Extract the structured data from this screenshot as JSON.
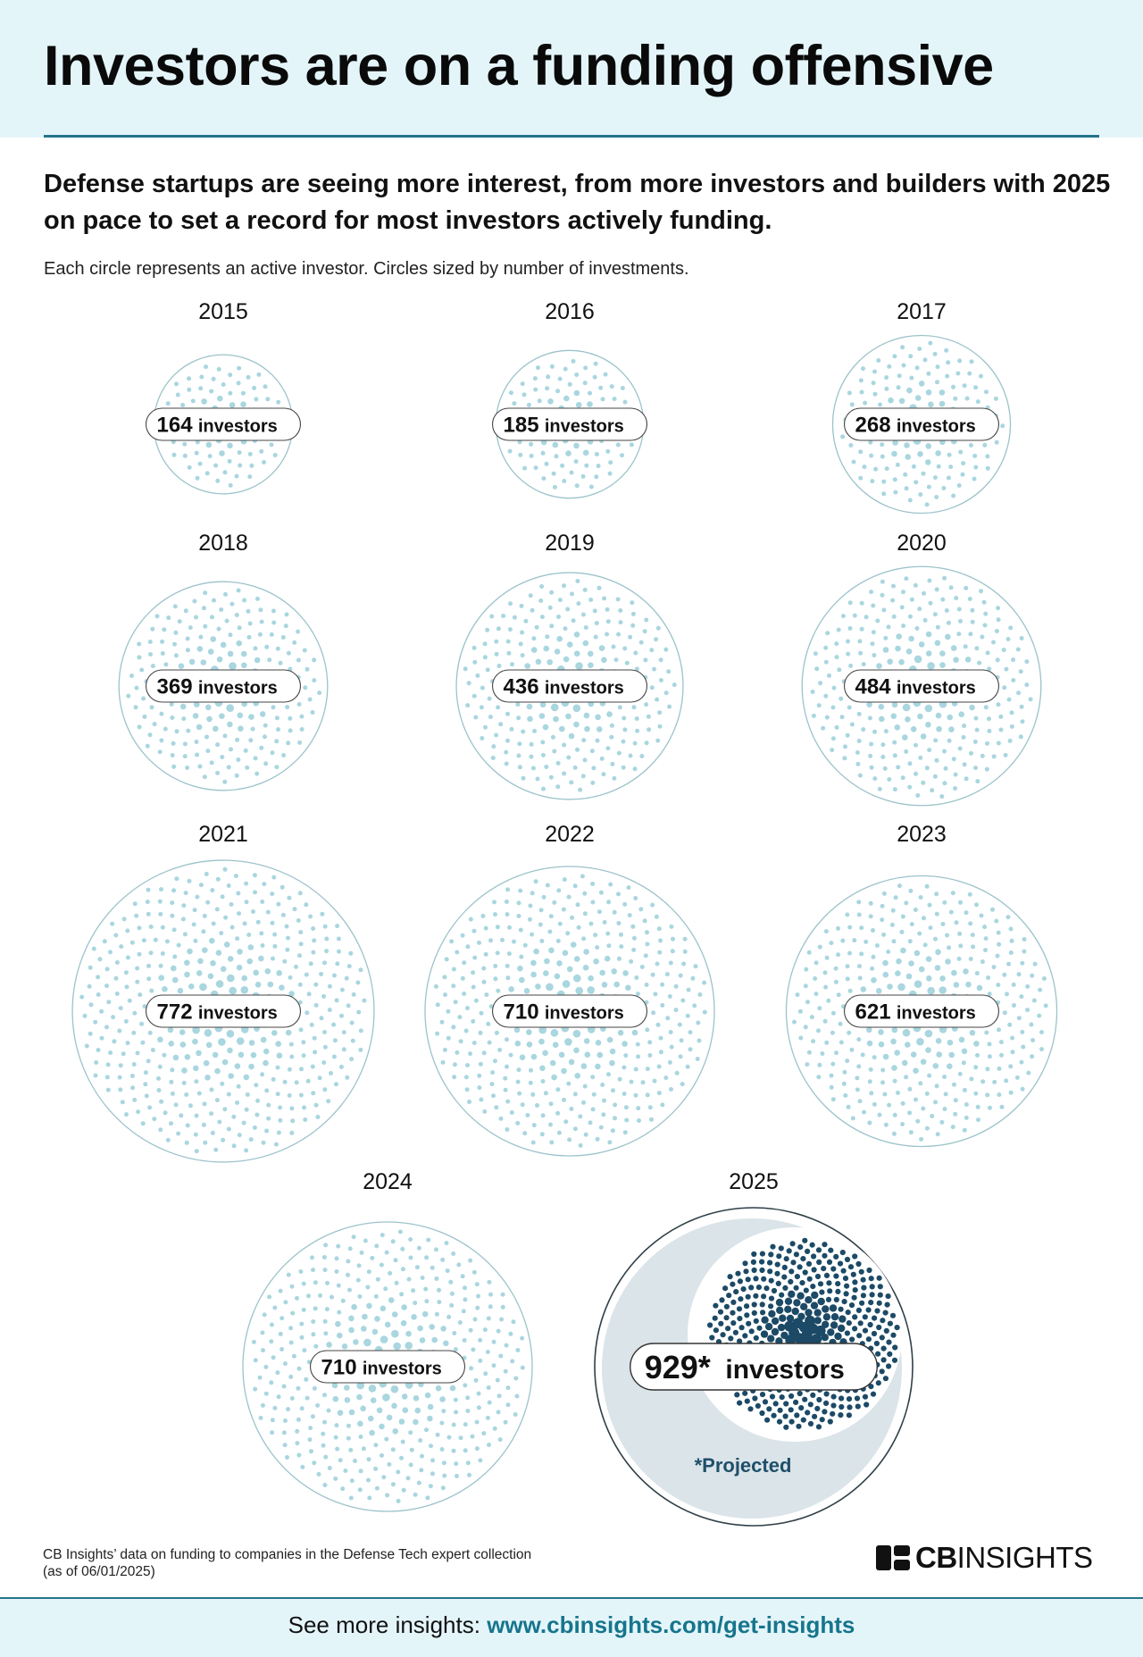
{
  "title": "Investors are on a funding offensive",
  "subtitle": "Defense startups are seeing more interest, from more investors and builders with 2025 on pace to set a record for most investors actively funding.",
  "note": "Each circle represents an active investor. Circles sized by number of investments.",
  "pill_suffix": "investors",
  "chart_data": {
    "type": "bubble",
    "title": "Investors are on a funding offensive",
    "categories": [
      "2015",
      "2016",
      "2017",
      "2018",
      "2019",
      "2020",
      "2021",
      "2022",
      "2023",
      "2024",
      "2025"
    ],
    "values": [
      164,
      185,
      268,
      369,
      436,
      484,
      772,
      710,
      621,
      710,
      929
    ],
    "value_labels": [
      "164",
      "185",
      "268",
      "369",
      "436",
      "484",
      "772",
      "710",
      "621",
      "710",
      "929*"
    ],
    "series": [
      {
        "name": "Active investors",
        "values": [
          164,
          185,
          268,
          369,
          436,
          484,
          772,
          710,
          621,
          710,
          929
        ]
      }
    ],
    "annotations": [
      "*Projected"
    ],
    "colors": {
      "dots": "#a9d6df",
      "dots_2025": "#1c4a66",
      "circle_stroke": "#9cc3ca",
      "projected_fill": "#dbe4e8",
      "accent": "#16758c"
    }
  },
  "source": {
    "line1": "CB Insights’ data on funding to companies in the Defense Tech expert collection",
    "line2": "(as of 06/01/2025)"
  },
  "logo": {
    "bold": "CB",
    "light": "INSIGHTS"
  },
  "footer": {
    "prefix": "See more insights: ",
    "link": "www.cbinsights.com/get-insights"
  }
}
